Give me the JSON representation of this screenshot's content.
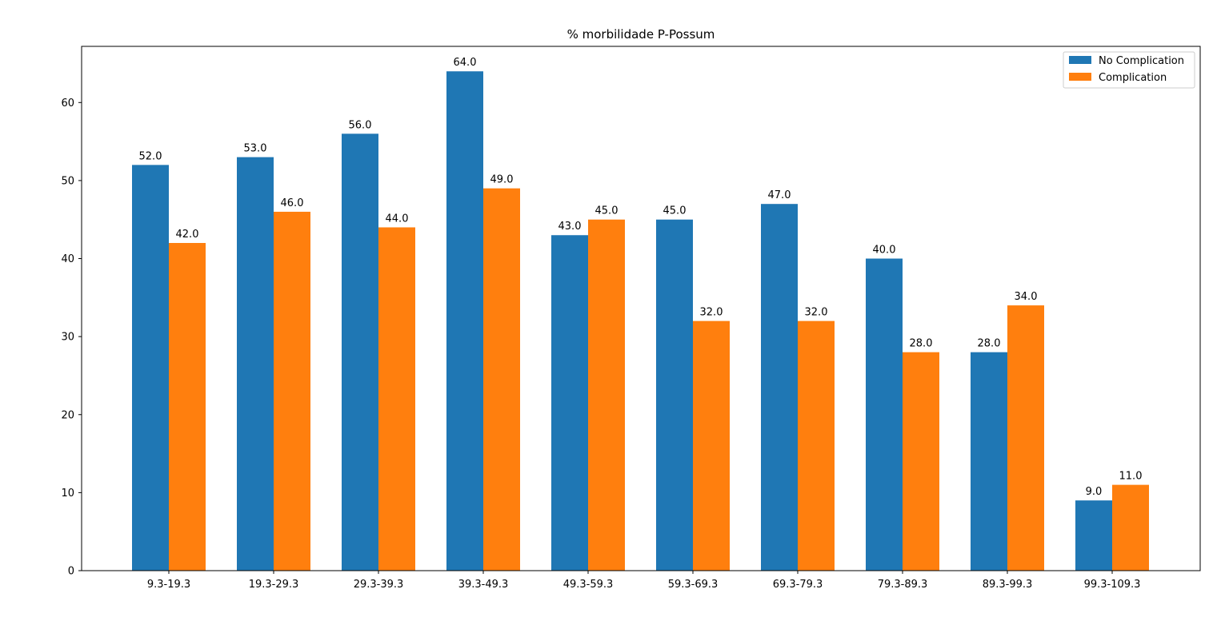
{
  "chart_data": {
    "type": "bar",
    "title": "% morbilidade P-Possum",
    "xlabel": "",
    "ylabel": "",
    "categories": [
      "9.3-19.3",
      "19.3-29.3",
      "29.3-39.3",
      "39.3-49.3",
      "49.3-59.3",
      "59.3-69.3",
      "69.3-79.3",
      "79.3-89.3",
      "89.3-99.3",
      "99.3-109.3"
    ],
    "series": [
      {
        "name": "No Complication",
        "color": "#1f77b4",
        "values": [
          52.0,
          53.0,
          56.0,
          64.0,
          43.0,
          45.0,
          47.0,
          40.0,
          28.0,
          9.0
        ]
      },
      {
        "name": "Complication",
        "color": "#ff7f0e",
        "values": [
          42.0,
          46.0,
          44.0,
          49.0,
          45.0,
          32.0,
          32.0,
          28.0,
          34.0,
          11.0
        ]
      }
    ],
    "data_labels": [
      [
        "52.0",
        "53.0",
        "56.0",
        "64.0",
        "43.0",
        "45.0",
        "47.0",
        "40.0",
        "28.0",
        "9.0"
      ],
      [
        "42.0",
        "46.0",
        "44.0",
        "49.0",
        "45.0",
        "32.0",
        "32.0",
        "28.0",
        "34.0",
        "11.0"
      ]
    ],
    "ylim": [
      0,
      67.2
    ],
    "yticks": [
      0,
      10,
      20,
      30,
      40,
      50,
      60
    ],
    "ytick_labels": [
      "0",
      "10",
      "20",
      "30",
      "40",
      "50",
      "60"
    ],
    "grid": false,
    "legend": "top-right"
  }
}
